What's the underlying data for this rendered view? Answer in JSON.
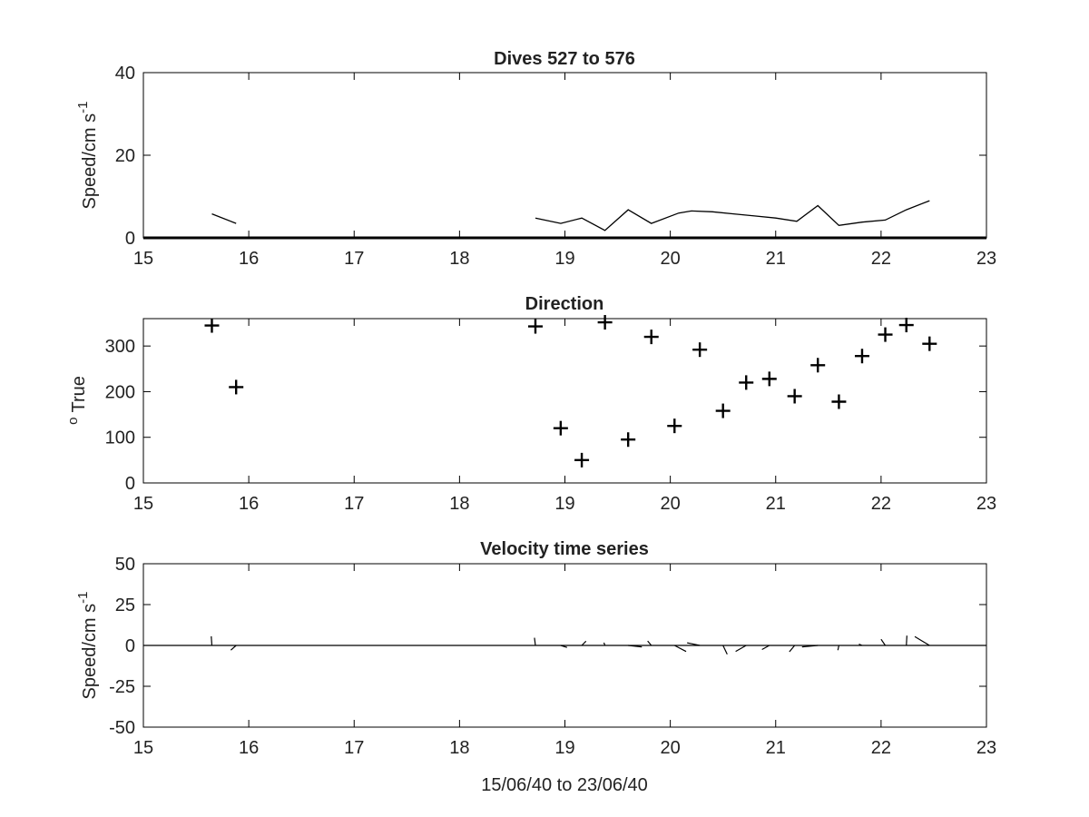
{
  "chart_data": [
    {
      "type": "line",
      "title": "Dives 527 to 576",
      "ylabel": "Speed/cm s",
      "ylabel_superscript": "-1",
      "xlim": [
        15,
        23
      ],
      "ylim": [
        0,
        40
      ],
      "xticks": [
        15,
        16,
        17,
        18,
        19,
        20,
        21,
        22,
        23
      ],
      "yticks": [
        0,
        20,
        40
      ],
      "grid": false,
      "series": [
        {
          "segments": [
            {
              "x": [
                15.65,
                15.88
              ],
              "y": [
                5.8,
                3.5
              ]
            },
            {
              "x": [
                18.72,
                18.96,
                19.16,
                19.38,
                19.6,
                19.82,
                20.08,
                20.2,
                20.4,
                20.6,
                20.8,
                21.0,
                21.2,
                21.4,
                21.6,
                21.82,
                22.04,
                22.24,
                22.46
              ],
              "y": [
                4.8,
                3.5,
                4.8,
                1.8,
                6.8,
                3.5,
                6.0,
                6.5,
                6.3,
                5.8,
                5.3,
                4.8,
                4.0,
                7.8,
                3.0,
                3.8,
                4.3,
                6.8,
                9.0
              ]
            }
          ]
        }
      ]
    },
    {
      "type": "scatter",
      "title": "Direction",
      "ylabel": "True",
      "ylabel_prefix": "o",
      "xlim": [
        15,
        23
      ],
      "ylim": [
        0,
        360
      ],
      "xticks": [
        15,
        16,
        17,
        18,
        19,
        20,
        21,
        22,
        23
      ],
      "yticks": [
        0,
        100,
        200,
        300
      ],
      "grid": false,
      "marker": "+",
      "x": [
        15.65,
        15.88,
        18.72,
        18.96,
        19.16,
        19.38,
        19.6,
        19.82,
        20.04,
        20.28,
        20.5,
        20.72,
        20.94,
        21.18,
        21.4,
        21.6,
        21.82,
        22.04,
        22.24,
        22.46
      ],
      "y": [
        345,
        210,
        343,
        120,
        50,
        352,
        95,
        320,
        125,
        292,
        158,
        220,
        228,
        190,
        258,
        178,
        278,
        325,
        346,
        305
      ]
    },
    {
      "type": "line",
      "title": "Velocity time series",
      "ylabel": "Speed/cm s",
      "ylabel_superscript": "-1",
      "xlabel": "15/06/40 to 23/06/40",
      "xlim": [
        15,
        23
      ],
      "ylim": [
        -50,
        50
      ],
      "xticks": [
        15,
        16,
        17,
        18,
        19,
        20,
        21,
        22,
        23
      ],
      "yticks": [
        -50,
        -25,
        0,
        25,
        50
      ],
      "grid": false,
      "style": "stick",
      "sticks": [
        {
          "x": 15.65,
          "u": -0.006,
          "v": 5.6
        },
        {
          "x": 15.88,
          "u": -0.05,
          "v": -2.9
        },
        {
          "x": 18.72,
          "u": -0.009,
          "v": 4.7
        },
        {
          "x": 18.96,
          "u": 0.06,
          "v": -1.2
        },
        {
          "x": 19.16,
          "u": 0.04,
          "v": 2.6
        },
        {
          "x": 19.38,
          "u": -0.01,
          "v": 1.7
        },
        {
          "x": 19.6,
          "u": 0.13,
          "v": -0.9
        },
        {
          "x": 19.82,
          "u": -0.035,
          "v": 2.7
        },
        {
          "x": 20.04,
          "u": 0.11,
          "v": -3.7
        },
        {
          "x": 20.28,
          "u": -0.12,
          "v": 1.6
        },
        {
          "x": 20.5,
          "u": 0.04,
          "v": -5.4
        },
        {
          "x": 20.72,
          "u": -0.1,
          "v": -3.7
        },
        {
          "x": 20.94,
          "u": -0.07,
          "v": -2.5
        },
        {
          "x": 21.18,
          "u": -0.05,
          "v": -3.9
        },
        {
          "x": 21.4,
          "u": -0.15,
          "v": -0.9
        },
        {
          "x": 21.6,
          "u": -0.01,
          "v": -2.9
        },
        {
          "x": 21.82,
          "u": -0.03,
          "v": 0.8
        },
        {
          "x": 22.04,
          "u": -0.04,
          "v": 3.8
        },
        {
          "x": 22.24,
          "u": 0.005,
          "v": 6.0
        },
        {
          "x": 22.46,
          "u": -0.14,
          "v": 5.4
        }
      ]
    }
  ]
}
